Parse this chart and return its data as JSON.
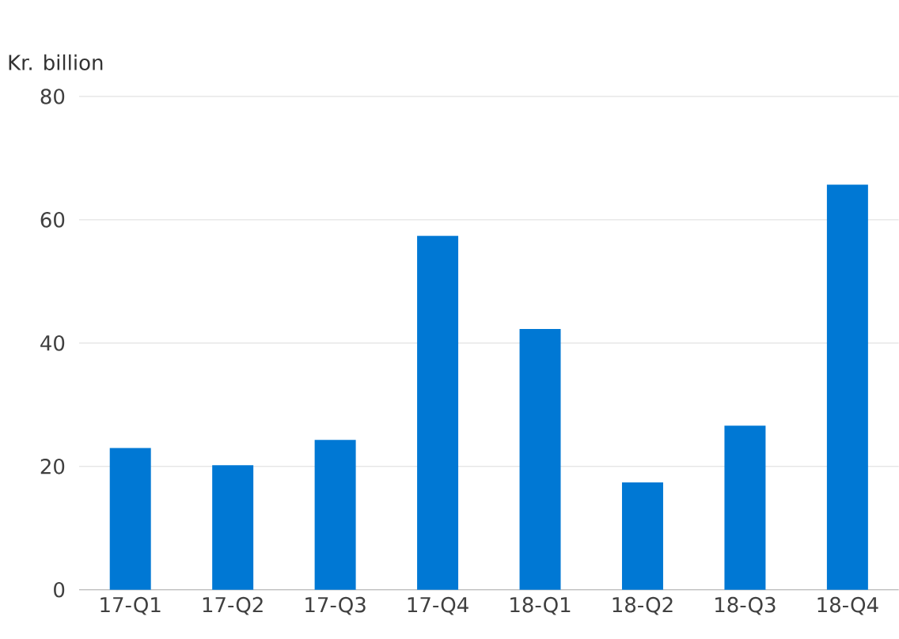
{
  "chart_data": {
    "type": "bar",
    "ylabel": "Kr. billion",
    "categories": [
      "17-Q1",
      "17-Q2",
      "17-Q3",
      "17-Q4",
      "18-Q1",
      "18-Q2",
      "18-Q3",
      "18-Q4"
    ],
    "values": [
      23,
      20.2,
      24.3,
      57.4,
      42.3,
      17.4,
      26.6,
      65.7
    ],
    "color": "#0078d4",
    "ylim": [
      0,
      80
    ],
    "yticks": [
      0,
      20,
      40,
      60,
      80
    ],
    "grid": "y"
  }
}
